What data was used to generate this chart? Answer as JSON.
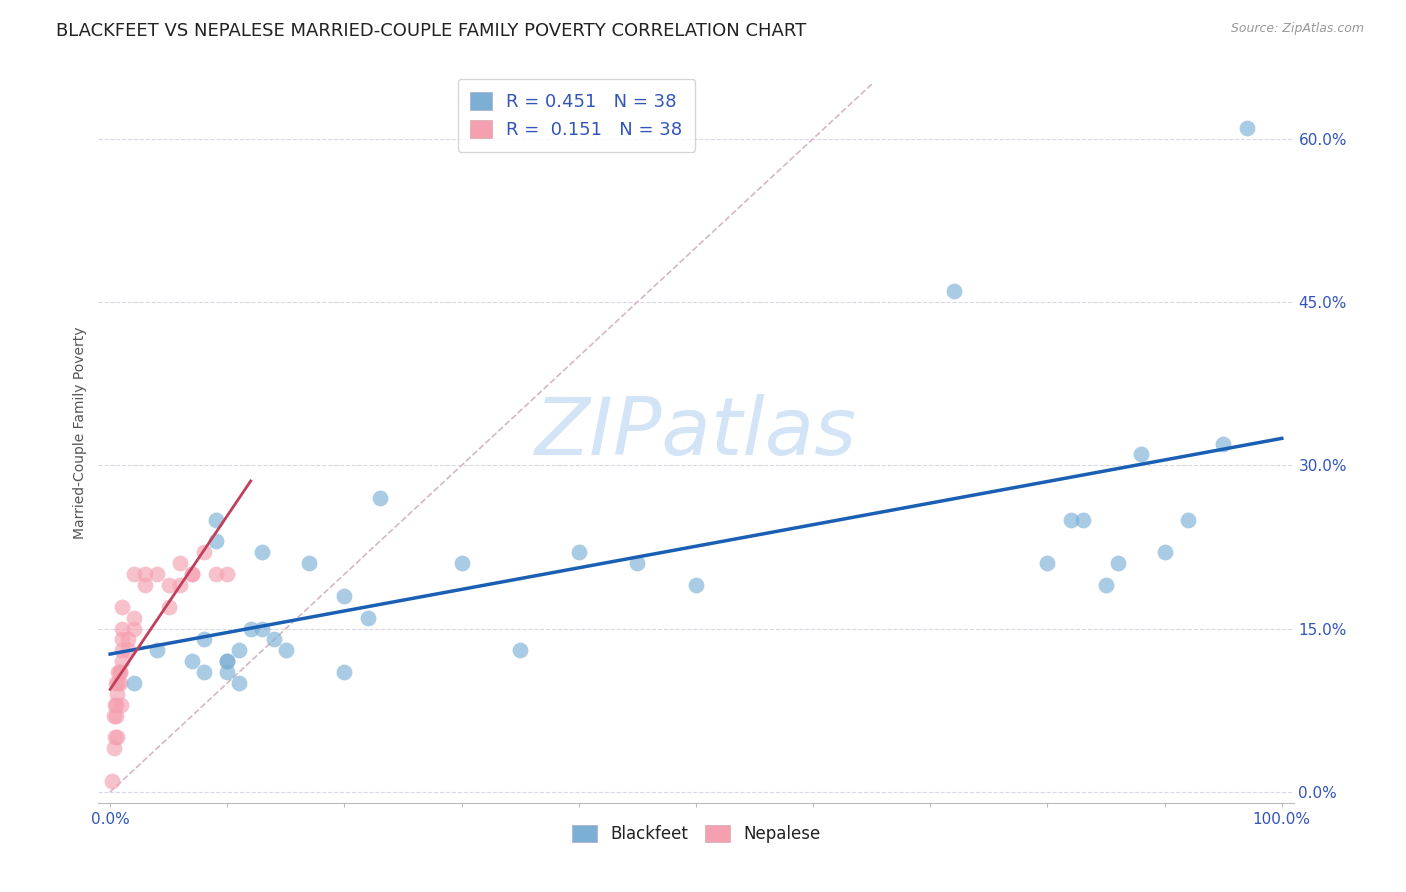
{
  "title": "BLACKFEET VS NEPALESE MARRIED-COUPLE FAMILY POVERTY CORRELATION CHART",
  "source": "Source: ZipAtlas.com",
  "ylabel": "Married-Couple Family Poverty",
  "watermark": "ZIPatlas",
  "blackfeet_R": 0.451,
  "nepalese_R": 0.151,
  "N": 38,
  "blackfeet_color": "#7bafd4",
  "nepalese_color": "#f4a0b0",
  "regression_blue": "#1a5fb4",
  "regression_pink": "#c0405a",
  "diag_color": "#d4b8c0",
  "blackfeet_x": [
    0.02,
    0.04,
    0.07,
    0.08,
    0.09,
    0.09,
    0.1,
    0.1,
    0.1,
    0.11,
    0.11,
    0.12,
    0.13,
    0.13,
    0.14,
    0.15,
    0.17,
    0.2,
    0.2,
    0.22,
    0.23,
    0.3,
    0.35,
    0.4,
    0.45,
    0.5,
    0.72,
    0.8,
    0.82,
    0.83,
    0.85,
    0.86,
    0.88,
    0.9,
    0.92,
    0.95,
    0.97,
    0.08
  ],
  "blackfeet_y": [
    0.1,
    0.13,
    0.12,
    0.14,
    0.25,
    0.23,
    0.11,
    0.12,
    0.12,
    0.13,
    0.1,
    0.15,
    0.15,
    0.22,
    0.14,
    0.13,
    0.21,
    0.18,
    0.11,
    0.16,
    0.27,
    0.21,
    0.13,
    0.22,
    0.21,
    0.19,
    0.46,
    0.21,
    0.25,
    0.25,
    0.19,
    0.21,
    0.31,
    0.22,
    0.25,
    0.32,
    0.61,
    0.11
  ],
  "nepalese_x": [
    0.002,
    0.003,
    0.003,
    0.004,
    0.004,
    0.005,
    0.005,
    0.005,
    0.006,
    0.006,
    0.007,
    0.007,
    0.008,
    0.008,
    0.008,
    0.009,
    0.01,
    0.01,
    0.01,
    0.01,
    0.01,
    0.015,
    0.015,
    0.02,
    0.02,
    0.02,
    0.03,
    0.03,
    0.04,
    0.05,
    0.05,
    0.06,
    0.06,
    0.07,
    0.07,
    0.08,
    0.09,
    0.1
  ],
  "nepalese_y": [
    0.01,
    0.04,
    0.07,
    0.05,
    0.08,
    0.07,
    0.08,
    0.1,
    0.09,
    0.05,
    0.1,
    0.11,
    0.11,
    0.1,
    0.11,
    0.08,
    0.13,
    0.12,
    0.14,
    0.15,
    0.17,
    0.14,
    0.13,
    0.15,
    0.16,
    0.2,
    0.2,
    0.19,
    0.2,
    0.19,
    0.17,
    0.19,
    0.21,
    0.2,
    0.2,
    0.22,
    0.2,
    0.2
  ],
  "xlim": [
    -0.01,
    1.01
  ],
  "ylim": [
    -0.01,
    0.67
  ],
  "yticks": [
    0.0,
    0.15,
    0.3,
    0.45,
    0.6
  ],
  "ytick_labels": [
    "0.0%",
    "15.0%",
    "30.0%",
    "45.0%",
    "60.0%"
  ],
  "xticks": [
    0.0,
    0.1,
    0.2,
    0.3,
    0.4,
    0.5,
    0.6,
    0.7,
    0.8,
    0.9,
    1.0
  ],
  "xtick_labels": [
    "0.0%",
    "",
    "",
    "",
    "",
    "",
    "",
    "",
    "",
    "",
    "100.0%"
  ],
  "grid_color": "#d8d8e8",
  "background_color": "#ffffff",
  "marker_size": 130,
  "title_fontsize": 13,
  "axis_label_fontsize": 10,
  "tick_fontsize": 11
}
